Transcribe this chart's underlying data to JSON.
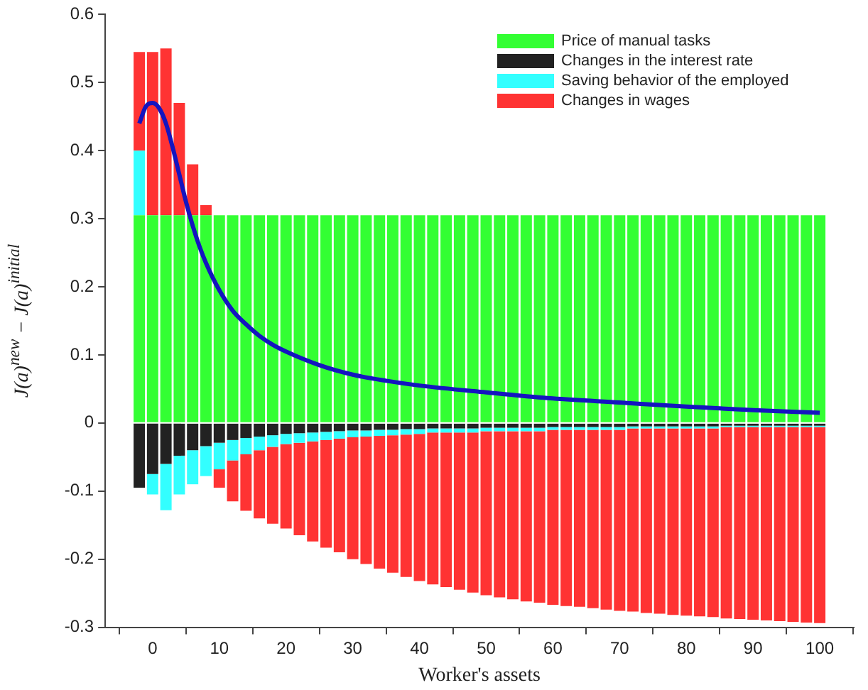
{
  "chart_data": {
    "type": "bar",
    "stacked": true,
    "xlabel": "Worker's assets",
    "ylabel": "J(a)$^{new}$ − J(a)$^{initial}$",
    "legend": "top right",
    "grid": false,
    "x": [
      -2,
      0,
      2,
      4,
      6,
      8,
      10,
      12,
      14,
      16,
      18,
      20,
      22,
      24,
      26,
      28,
      30,
      32,
      34,
      36,
      38,
      40,
      42,
      44,
      46,
      48,
      50,
      52,
      54,
      56,
      58,
      60,
      62,
      64,
      66,
      68,
      70,
      72,
      74,
      76,
      78,
      80,
      82,
      84,
      86,
      88,
      90,
      92,
      94,
      96,
      98,
      100
    ],
    "xlim": [
      -2,
      100
    ],
    "xticks": [
      0,
      10,
      20,
      30,
      40,
      50,
      60,
      70,
      80,
      90,
      100
    ],
    "ylim": [
      -0.3,
      0.6
    ],
    "yticks": [
      -0.3,
      -0.2,
      -0.1,
      0,
      0.1,
      0.2,
      0.3,
      0.4,
      0.5,
      0.6
    ],
    "series": [
      {
        "name": "Price of manual tasks",
        "color": "#33ff33",
        "values": [
          0.305,
          0.305,
          0.305,
          0.305,
          0.305,
          0.305,
          0.305,
          0.305,
          0.305,
          0.305,
          0.305,
          0.305,
          0.305,
          0.305,
          0.305,
          0.305,
          0.305,
          0.305,
          0.305,
          0.305,
          0.305,
          0.305,
          0.305,
          0.305,
          0.305,
          0.305,
          0.305,
          0.305,
          0.305,
          0.305,
          0.305,
          0.305,
          0.305,
          0.305,
          0.305,
          0.305,
          0.305,
          0.305,
          0.305,
          0.305,
          0.305,
          0.305,
          0.305,
          0.305,
          0.305,
          0.305,
          0.305,
          0.305,
          0.305,
          0.305,
          0.305,
          0.305
        ]
      },
      {
        "name": "Changes in the interest rate",
        "color": "#222222",
        "values": [
          -0.095,
          -0.075,
          -0.06,
          -0.048,
          -0.04,
          -0.034,
          -0.029,
          -0.025,
          -0.022,
          -0.02,
          -0.018,
          -0.016,
          -0.015,
          -0.014,
          -0.013,
          -0.012,
          -0.011,
          -0.011,
          -0.01,
          -0.01,
          -0.009,
          -0.009,
          -0.008,
          -0.008,
          -0.008,
          -0.008,
          -0.007,
          -0.007,
          -0.007,
          -0.007,
          -0.007,
          -0.006,
          -0.006,
          -0.006,
          -0.006,
          -0.006,
          -0.006,
          -0.005,
          -0.005,
          -0.005,
          -0.005,
          -0.005,
          -0.005,
          -0.005,
          -0.004,
          -0.004,
          -0.004,
          -0.004,
          -0.004,
          -0.004,
          -0.004,
          -0.004
        ]
      },
      {
        "name": "Saving behavior of the employed",
        "color": "#33ffff",
        "values": [
          0.095,
          -0.03,
          -0.068,
          -0.057,
          -0.05,
          -0.044,
          -0.039,
          -0.03,
          -0.024,
          -0.02,
          -0.017,
          -0.015,
          -0.014,
          -0.013,
          -0.012,
          -0.011,
          -0.01,
          -0.009,
          -0.009,
          -0.008,
          -0.008,
          -0.007,
          -0.006,
          -0.006,
          -0.006,
          -0.006,
          -0.005,
          -0.005,
          -0.005,
          -0.005,
          -0.005,
          -0.004,
          -0.004,
          -0.004,
          -0.004,
          -0.004,
          -0.004,
          -0.003,
          -0.003,
          -0.003,
          -0.003,
          -0.003,
          -0.003,
          -0.003,
          -0.002,
          -0.002,
          -0.002,
          -0.002,
          -0.002,
          -0.002,
          -0.002,
          -0.002
        ]
      },
      {
        "name": "Changes in wages",
        "color": "#ff3333",
        "values": [
          0.145,
          0.24,
          0.245,
          0.165,
          0.075,
          0.015,
          -0.027,
          -0.06,
          -0.083,
          -0.1,
          -0.113,
          -0.124,
          -0.136,
          -0.147,
          -0.158,
          -0.167,
          -0.179,
          -0.187,
          -0.195,
          -0.202,
          -0.209,
          -0.216,
          -0.223,
          -0.227,
          -0.231,
          -0.235,
          -0.241,
          -0.244,
          -0.247,
          -0.25,
          -0.252,
          -0.257,
          -0.259,
          -0.26,
          -0.262,
          -0.264,
          -0.266,
          -0.269,
          -0.271,
          -0.272,
          -0.274,
          -0.275,
          -0.276,
          -0.277,
          -0.281,
          -0.282,
          -0.283,
          -0.284,
          -0.285,
          -0.286,
          -0.287,
          -0.288
        ]
      },
      {
        "type": "line",
        "color": "#1414c0",
        "x": [
          -2,
          -1,
          0,
          1,
          2,
          3,
          4,
          5,
          6,
          7,
          8,
          10,
          12,
          14,
          16,
          18,
          20,
          25,
          30,
          35,
          40,
          50,
          60,
          70,
          80,
          90,
          100
        ],
        "values": [
          0.44,
          0.465,
          0.47,
          0.462,
          0.44,
          0.405,
          0.365,
          0.325,
          0.29,
          0.26,
          0.235,
          0.195,
          0.165,
          0.145,
          0.128,
          0.115,
          0.105,
          0.085,
          0.071,
          0.062,
          0.055,
          0.045,
          0.036,
          0.03,
          0.024,
          0.019,
          0.015
        ]
      }
    ]
  }
}
